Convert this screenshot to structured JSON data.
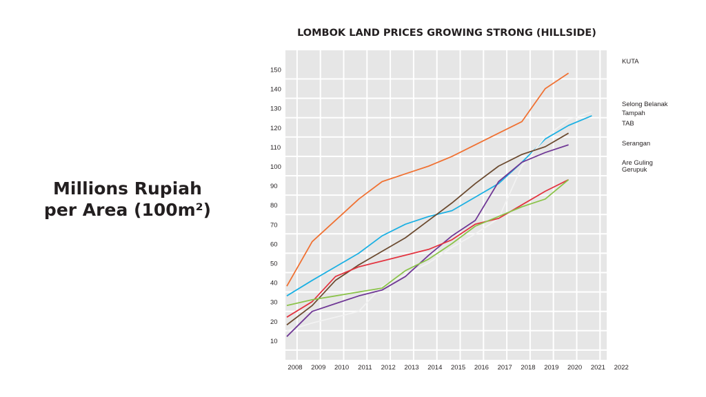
{
  "side_label": {
    "line1": "Millions Rupiah",
    "line2": "per Area (100m²)"
  },
  "chart_data": {
    "type": "line",
    "title": "LOMBOK LAND PRICES GROWING STRONG (HILLSIDE)",
    "xlabel": "",
    "ylabel": "",
    "x_ticks": [
      "2008",
      "2009",
      "2010",
      "2011",
      "2012",
      "2013",
      "2014",
      "2015",
      "2016",
      "2017",
      "2018",
      "2019",
      "2020",
      "2021",
      "2022"
    ],
    "y_ticks": [
      10,
      20,
      30,
      40,
      50,
      60,
      70,
      80,
      90,
      100,
      110,
      120,
      130,
      140,
      150
    ],
    "ylim": [
      0,
      160
    ],
    "grid": true,
    "legend_placement": "right",
    "series": [
      {
        "name": "KUTA",
        "color": "#f07132",
        "points": [
          [
            2008,
            38
          ],
          [
            2009,
            61
          ],
          [
            2010,
            72
          ],
          [
            2011,
            83
          ],
          [
            2012,
            92
          ],
          [
            2013,
            96
          ],
          [
            2014,
            100
          ],
          [
            2015,
            105
          ],
          [
            2016,
            111
          ],
          [
            2017,
            117
          ],
          [
            2018,
            123
          ],
          [
            2019,
            140
          ],
          [
            2020,
            148
          ]
        ]
      },
      {
        "name": "Selong Belanak",
        "color": "#1bb0e3",
        "points": [
          [
            2008,
            33
          ],
          [
            2009,
            41
          ],
          [
            2010,
            48
          ],
          [
            2011,
            55
          ],
          [
            2012,
            64
          ],
          [
            2013,
            70
          ],
          [
            2014,
            74
          ],
          [
            2015,
            77
          ],
          [
            2016,
            84
          ],
          [
            2017,
            91
          ],
          [
            2018,
            102
          ],
          [
            2019,
            114
          ],
          [
            2020,
            121
          ],
          [
            2021,
            126
          ]
        ]
      },
      {
        "name": "Tampah",
        "color": "#f2f2f2",
        "points": [
          [
            2008,
            15
          ],
          [
            2009,
            19
          ],
          [
            2010,
            22
          ],
          [
            2011,
            25
          ],
          [
            2012,
            38
          ],
          [
            2013,
            44
          ],
          [
            2014,
            50
          ],
          [
            2015,
            58
          ],
          [
            2016,
            65
          ],
          [
            2017,
            73
          ],
          [
            2018,
            100
          ],
          [
            2019,
            115
          ],
          [
            2020,
            124
          ],
          [
            2021,
            128
          ]
        ]
      },
      {
        "name": "TAB",
        "color": "#6b4a2f",
        "points": [
          [
            2008,
            18
          ],
          [
            2009,
            28
          ],
          [
            2010,
            41
          ],
          [
            2011,
            49
          ],
          [
            2012,
            56
          ],
          [
            2013,
            63
          ],
          [
            2014,
            72
          ],
          [
            2015,
            81
          ],
          [
            2016,
            91
          ],
          [
            2017,
            100
          ],
          [
            2018,
            106
          ],
          [
            2019,
            110
          ],
          [
            2020,
            117
          ]
        ]
      },
      {
        "name": "Serangan",
        "color": "#6f3795",
        "points": [
          [
            2008,
            12
          ],
          [
            2009,
            25
          ],
          [
            2010,
            29
          ],
          [
            2011,
            33
          ],
          [
            2012,
            36
          ],
          [
            2013,
            43
          ],
          [
            2014,
            54
          ],
          [
            2015,
            64
          ],
          [
            2016,
            72
          ],
          [
            2017,
            92
          ],
          [
            2018,
            102
          ],
          [
            2019,
            107
          ],
          [
            2020,
            111
          ]
        ]
      },
      {
        "name": "Are Guling",
        "color": "#e3333f",
        "points": [
          [
            2008,
            22
          ],
          [
            2009,
            30
          ],
          [
            2010,
            43
          ],
          [
            2011,
            48
          ],
          [
            2012,
            51
          ],
          [
            2013,
            54
          ],
          [
            2014,
            57
          ],
          [
            2015,
            62
          ],
          [
            2016,
            70
          ],
          [
            2017,
            73
          ],
          [
            2018,
            80
          ],
          [
            2019,
            87
          ],
          [
            2020,
            93
          ]
        ]
      },
      {
        "name": "Gerupuk",
        "color": "#8bc34a",
        "points": [
          [
            2008,
            28
          ],
          [
            2009,
            31
          ],
          [
            2010,
            33
          ],
          [
            2011,
            35
          ],
          [
            2012,
            37
          ],
          [
            2013,
            46
          ],
          [
            2014,
            52
          ],
          [
            2015,
            60
          ],
          [
            2016,
            69
          ],
          [
            2017,
            74
          ],
          [
            2018,
            79
          ],
          [
            2019,
            83
          ],
          [
            2020,
            93
          ]
        ]
      }
    ]
  }
}
